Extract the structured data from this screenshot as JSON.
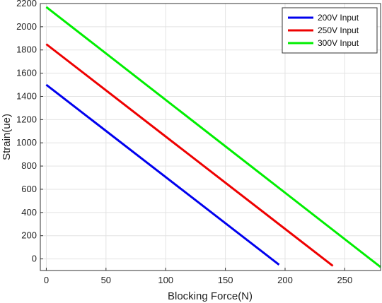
{
  "chart_data": {
    "type": "line",
    "title": "",
    "xlabel": "Blocking Force(N)",
    "ylabel": "Strain(ue)",
    "xlim": [
      -5,
      280
    ],
    "ylim": [
      -100,
      2200
    ],
    "xticks": [
      0,
      50,
      100,
      150,
      200,
      250
    ],
    "yticks": [
      0,
      200,
      400,
      600,
      800,
      1000,
      1200,
      1400,
      1600,
      1800,
      2000,
      2200
    ],
    "grid": true,
    "legend_position": "top-right",
    "series": [
      {
        "name": "200V Input",
        "color": "#0000ee",
        "x": [
          0,
          195
        ],
        "y": [
          1500,
          -50
        ]
      },
      {
        "name": "250V Input",
        "color": "#ee0000",
        "x": [
          0,
          240
        ],
        "y": [
          1850,
          -60
        ]
      },
      {
        "name": "300V Input",
        "color": "#00ee00",
        "x": [
          0,
          280
        ],
        "y": [
          2170,
          -70
        ]
      }
    ]
  }
}
